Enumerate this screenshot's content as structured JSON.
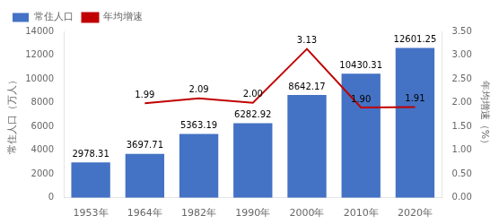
{
  "chart_data": {
    "type": "bar",
    "categories": [
      "1953年",
      "1964年",
      "1982年",
      "1990年",
      "2000年",
      "2010年",
      "2020年"
    ],
    "series": [
      {
        "name": "常住人口",
        "type": "bar",
        "color": "#4472C4",
        "values": [
          2978.31,
          3697.71,
          5363.19,
          6282.92,
          8642.17,
          10430.31,
          12601.25
        ]
      },
      {
        "name": "年均增速",
        "type": "line",
        "axis": "y2",
        "color": "#C00000",
        "values": [
          null,
          1.99,
          2.09,
          2.0,
          3.13,
          1.9,
          1.91
        ],
        "value_labels": [
          null,
          "1.99",
          "2.09",
          "2.00",
          "3.13",
          "1.90",
          "1.91"
        ]
      }
    ],
    "y_label": "常住人口（万人）",
    "y2_label": "年均增速（%）",
    "ylim": [
      0,
      14000
    ],
    "yticks": [
      0,
      2000,
      4000,
      6000,
      8000,
      10000,
      12000,
      14000
    ],
    "y2lim": [
      0.0,
      3.5
    ],
    "y2ticks": [
      {
        "value": 0.0,
        "label": "0.00"
      },
      {
        "value": 0.5,
        "label": "0.50"
      },
      {
        "value": 1.0,
        "label": "1.00"
      },
      {
        "value": 1.5,
        "label": "1.50"
      },
      {
        "value": 2.0,
        "label": "2.00"
      },
      {
        "value": 2.5,
        "label": "2.50"
      },
      {
        "value": 3.0,
        "label": "3.00"
      },
      {
        "value": 3.5,
        "label": "3.50"
      }
    ],
    "data_labels": true,
    "legend": "upper left",
    "grid": false
  }
}
